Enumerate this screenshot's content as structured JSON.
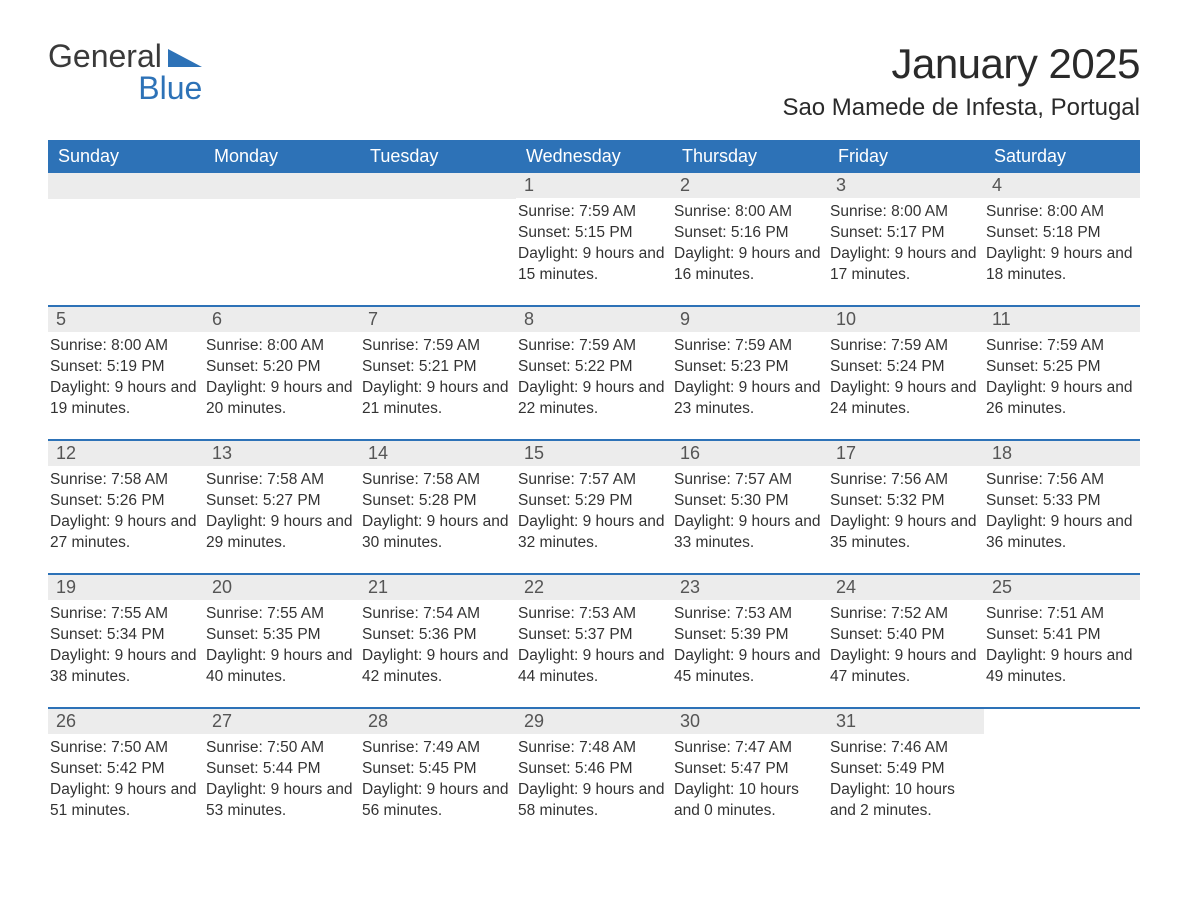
{
  "logo": {
    "general": "General",
    "blue": "Blue",
    "shape_color": "#2d72b7"
  },
  "title": "January 2025",
  "location": "Sao Mamede de Infesta, Portugal",
  "colors": {
    "header_bg": "#2d72b7",
    "header_text": "#ffffff",
    "daynum_bg": "#ececec",
    "daynum_text": "#555555",
    "body_text": "#333333",
    "rule": "#2d72b7",
    "page_bg": "#ffffff"
  },
  "day_headers": [
    "Sunday",
    "Monday",
    "Tuesday",
    "Wednesday",
    "Thursday",
    "Friday",
    "Saturday"
  ],
  "weeks": [
    [
      null,
      null,
      null,
      {
        "n": "1",
        "sunrise": "7:59 AM",
        "sunset": "5:15 PM",
        "daylight": "9 hours and 15 minutes."
      },
      {
        "n": "2",
        "sunrise": "8:00 AM",
        "sunset": "5:16 PM",
        "daylight": "9 hours and 16 minutes."
      },
      {
        "n": "3",
        "sunrise": "8:00 AM",
        "sunset": "5:17 PM",
        "daylight": "9 hours and 17 minutes."
      },
      {
        "n": "4",
        "sunrise": "8:00 AM",
        "sunset": "5:18 PM",
        "daylight": "9 hours and 18 minutes."
      }
    ],
    [
      {
        "n": "5",
        "sunrise": "8:00 AM",
        "sunset": "5:19 PM",
        "daylight": "9 hours and 19 minutes."
      },
      {
        "n": "6",
        "sunrise": "8:00 AM",
        "sunset": "5:20 PM",
        "daylight": "9 hours and 20 minutes."
      },
      {
        "n": "7",
        "sunrise": "7:59 AM",
        "sunset": "5:21 PM",
        "daylight": "9 hours and 21 minutes."
      },
      {
        "n": "8",
        "sunrise": "7:59 AM",
        "sunset": "5:22 PM",
        "daylight": "9 hours and 22 minutes."
      },
      {
        "n": "9",
        "sunrise": "7:59 AM",
        "sunset": "5:23 PM",
        "daylight": "9 hours and 23 minutes."
      },
      {
        "n": "10",
        "sunrise": "7:59 AM",
        "sunset": "5:24 PM",
        "daylight": "9 hours and 24 minutes."
      },
      {
        "n": "11",
        "sunrise": "7:59 AM",
        "sunset": "5:25 PM",
        "daylight": "9 hours and 26 minutes."
      }
    ],
    [
      {
        "n": "12",
        "sunrise": "7:58 AM",
        "sunset": "5:26 PM",
        "daylight": "9 hours and 27 minutes."
      },
      {
        "n": "13",
        "sunrise": "7:58 AM",
        "sunset": "5:27 PM",
        "daylight": "9 hours and 29 minutes."
      },
      {
        "n": "14",
        "sunrise": "7:58 AM",
        "sunset": "5:28 PM",
        "daylight": "9 hours and 30 minutes."
      },
      {
        "n": "15",
        "sunrise": "7:57 AM",
        "sunset": "5:29 PM",
        "daylight": "9 hours and 32 minutes."
      },
      {
        "n": "16",
        "sunrise": "7:57 AM",
        "sunset": "5:30 PM",
        "daylight": "9 hours and 33 minutes."
      },
      {
        "n": "17",
        "sunrise": "7:56 AM",
        "sunset": "5:32 PM",
        "daylight": "9 hours and 35 minutes."
      },
      {
        "n": "18",
        "sunrise": "7:56 AM",
        "sunset": "5:33 PM",
        "daylight": "9 hours and 36 minutes."
      }
    ],
    [
      {
        "n": "19",
        "sunrise": "7:55 AM",
        "sunset": "5:34 PM",
        "daylight": "9 hours and 38 minutes."
      },
      {
        "n": "20",
        "sunrise": "7:55 AM",
        "sunset": "5:35 PM",
        "daylight": "9 hours and 40 minutes."
      },
      {
        "n": "21",
        "sunrise": "7:54 AM",
        "sunset": "5:36 PM",
        "daylight": "9 hours and 42 minutes."
      },
      {
        "n": "22",
        "sunrise": "7:53 AM",
        "sunset": "5:37 PM",
        "daylight": "9 hours and 44 minutes."
      },
      {
        "n": "23",
        "sunrise": "7:53 AM",
        "sunset": "5:39 PM",
        "daylight": "9 hours and 45 minutes."
      },
      {
        "n": "24",
        "sunrise": "7:52 AM",
        "sunset": "5:40 PM",
        "daylight": "9 hours and 47 minutes."
      },
      {
        "n": "25",
        "sunrise": "7:51 AM",
        "sunset": "5:41 PM",
        "daylight": "9 hours and 49 minutes."
      }
    ],
    [
      {
        "n": "26",
        "sunrise": "7:50 AM",
        "sunset": "5:42 PM",
        "daylight": "9 hours and 51 minutes."
      },
      {
        "n": "27",
        "sunrise": "7:50 AM",
        "sunset": "5:44 PM",
        "daylight": "9 hours and 53 minutes."
      },
      {
        "n": "28",
        "sunrise": "7:49 AM",
        "sunset": "5:45 PM",
        "daylight": "9 hours and 56 minutes."
      },
      {
        "n": "29",
        "sunrise": "7:48 AM",
        "sunset": "5:46 PM",
        "daylight": "9 hours and 58 minutes."
      },
      {
        "n": "30",
        "sunrise": "7:47 AM",
        "sunset": "5:47 PM",
        "daylight": "10 hours and 0 minutes."
      },
      {
        "n": "31",
        "sunrise": "7:46 AM",
        "sunset": "5:49 PM",
        "daylight": "10 hours and 2 minutes."
      },
      null
    ]
  ],
  "labels": {
    "sunrise": "Sunrise: ",
    "sunset": "Sunset: ",
    "daylight": "Daylight: "
  }
}
